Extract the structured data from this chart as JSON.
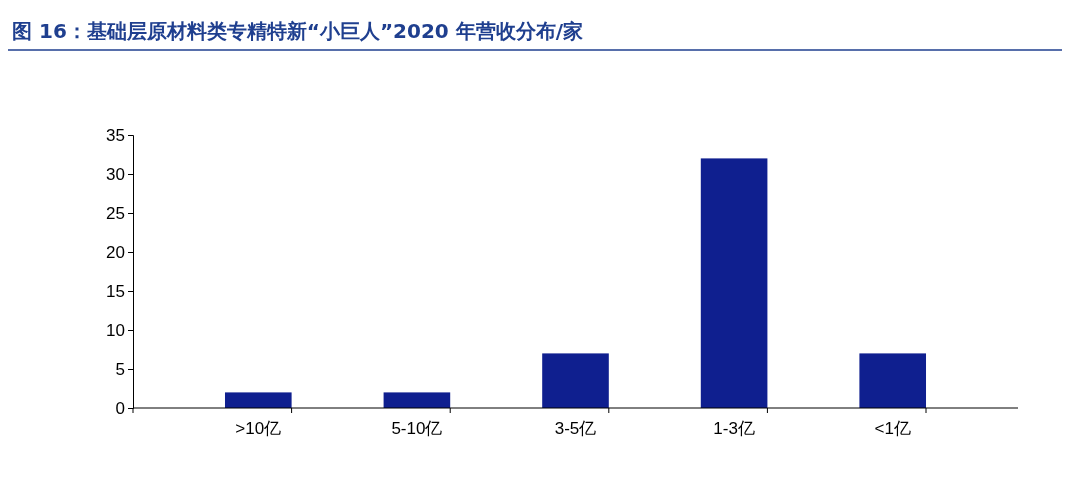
{
  "chart_data": {
    "type": "bar",
    "title": "图 16：基础层原材料类专精特新“小巨人”2020 年营收分布/家",
    "categories": [
      ">10亿",
      "5-10亿",
      "3-5亿",
      "1-3亿",
      "<1亿"
    ],
    "values": [
      2,
      2,
      7,
      32,
      7
    ],
    "color": "#0f1f8f",
    "ylim": [
      0,
      35
    ],
    "yticks": [
      0,
      5,
      10,
      15,
      20,
      25,
      30,
      35
    ],
    "grid": false
  }
}
